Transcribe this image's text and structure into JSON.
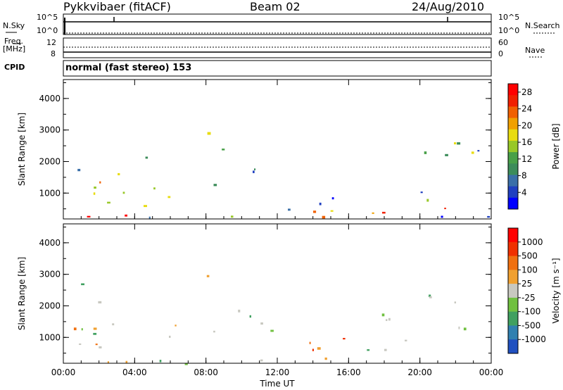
{
  "header": {
    "station": "Pykkvibaer (fitACF)",
    "beam": "Beam 02",
    "date": "24/Aug/2010"
  },
  "strips": {
    "nsky_label": "N.Sky",
    "nsky_ticks": [
      "10^5",
      "10^0"
    ],
    "nsearch_label": "N.Search",
    "nsearch_ticks": [
      "10^5",
      "10^0"
    ],
    "freq_label": "Freq.",
    "freq_unit": "[MHz]",
    "freq_ticks": [
      "12",
      "8"
    ],
    "nave_label": "Nave",
    "nave_ticks": [
      "60",
      "0"
    ],
    "cpid_label": "CPID",
    "cpid_value": "normal (fast stereo) 153"
  },
  "chart_data": [
    {
      "type": "heatmap",
      "panel": "power",
      "xlabel": "",
      "ylabel": "Slant Range [km]",
      "x_ticks": [
        "00:00",
        "04:00",
        "08:00",
        "12:00",
        "16:00",
        "20:00",
        "00:00"
      ],
      "y_ticks": [
        "1000",
        "2000",
        "3000",
        "4000"
      ],
      "ylim": [
        180,
        4600
      ],
      "colorbar": {
        "label": "Power [dB]",
        "ticks": [
          "4",
          "8",
          "12",
          "16",
          "20",
          "24",
          "28"
        ],
        "colors": [
          "#0000ff",
          "#2040c0",
          "#3a6fa8",
          "#3c8c5a",
          "#48a048",
          "#98c828",
          "#e8dc10",
          "#f0a000",
          "#f06000",
          "#f02000",
          "#ff0000"
        ],
        "range": [
          0,
          30
        ]
      }
    },
    {
      "type": "heatmap",
      "panel": "velocity",
      "xlabel": "Time UT",
      "ylabel": "Slant Range [km]",
      "x_ticks": [
        "00:00",
        "04:00",
        "08:00",
        "12:00",
        "16:00",
        "20:00",
        "00:00"
      ],
      "y_ticks": [
        "1000",
        "2000",
        "3000",
        "4000"
      ],
      "ylim": [
        180,
        4600
      ],
      "colorbar": {
        "label": "Velocity [m s⁻¹]",
        "ticks": [
          "1000",
          "500",
          "100",
          "25",
          "-25",
          "-100",
          "-500",
          "-1000"
        ],
        "colors": [
          "#2050c0",
          "#3080b0",
          "#40a060",
          "#70c040",
          "#c8c8c0",
          "#f0a030",
          "#f07010",
          "#f03000",
          "#ff0000"
        ]
      }
    }
  ]
}
